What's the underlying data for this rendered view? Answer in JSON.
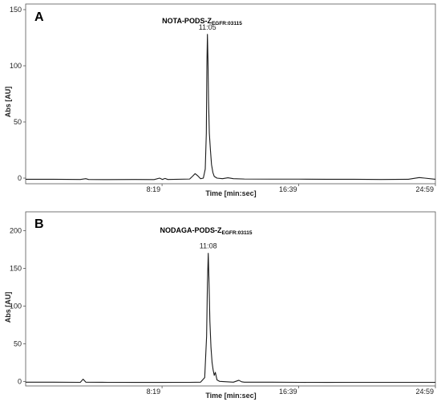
{
  "chart_data": [
    {
      "type": "line",
      "panel": "A",
      "title_main": "NOTA-PODS-Z",
      "title_sub": "EGFR:03115",
      "xlabel": "Time [min:sec]",
      "ylabel": "Abs [AU]",
      "x_unit": "seconds",
      "xlim": [
        0,
        1499
      ],
      "ylim": [
        -5,
        155
      ],
      "x_ticks": [
        {
          "value": 499,
          "label": "8:19"
        },
        {
          "value": 999,
          "label": "16:39"
        },
        {
          "value": 1499,
          "label": "24:59"
        }
      ],
      "y_ticks": [
        0,
        50,
        100,
        150
      ],
      "peak": {
        "x": 665,
        "y": 128,
        "label": "11:05"
      },
      "series": [
        {
          "x": [
            0,
            100,
            200,
            220,
            230,
            300,
            400,
            470,
            490,
            500,
            510,
            520,
            600,
            610,
            620,
            630,
            640,
            650,
            657,
            661,
            663,
            665,
            667,
            669,
            672,
            676,
            680,
            685,
            690,
            700,
            720,
            740,
            760,
            800,
            900,
            1000,
            1100,
            1200,
            1300,
            1400,
            1440,
            1460,
            1499
          ],
          "y": [
            -1,
            -1,
            -1.2,
            -0.5,
            -1.2,
            -1.3,
            -1.2,
            -1.3,
            0,
            -1.2,
            -0.3,
            -1.2,
            -0.8,
            1.5,
            4,
            2,
            -0.5,
            0,
            8,
            40,
            100,
            128,
            105,
            70,
            40,
            25,
            12,
            5,
            1.5,
            0,
            -0.5,
            0.3,
            -0.5,
            -0.8,
            -0.9,
            -0.9,
            -1,
            -1,
            -1.2,
            -1,
            0.5,
            0,
            -1
          ]
        }
      ]
    },
    {
      "type": "line",
      "panel": "B",
      "title_main": "NODAGA-PODS-Z",
      "title_sub": "EGFR:03115",
      "xlabel": "Time [min:sec]",
      "ylabel": "Abs [AU]",
      "x_unit": "seconds",
      "xlim": [
        0,
        1499
      ],
      "ylim": [
        -6,
        225
      ],
      "x_ticks": [
        {
          "value": 499,
          "label": "8:19"
        },
        {
          "value": 999,
          "label": "16:39"
        },
        {
          "value": 1499,
          "label": "24:59"
        }
      ],
      "y_ticks": [
        0,
        50,
        100,
        150,
        200
      ],
      "peak": {
        "x": 668,
        "y": 170,
        "label": "11:08"
      },
      "series": [
        {
          "x": [
            0,
            100,
            200,
            210,
            220,
            300,
            400,
            500,
            600,
            640,
            655,
            662,
            665,
            668,
            671,
            674,
            678,
            682,
            686,
            690,
            694,
            700,
            710,
            760,
            780,
            790,
            800,
            900,
            1000,
            1100,
            1200,
            1300,
            1400,
            1499
          ],
          "y": [
            -1,
            -1,
            -1.2,
            3,
            -1,
            -1.2,
            -1.3,
            -1.3,
            -1.2,
            -1,
            5,
            60,
            130,
            170,
            130,
            80,
            45,
            25,
            15,
            8,
            12,
            2,
            0,
            -1,
            1.5,
            -0.5,
            -1,
            -1,
            -1.2,
            -1.3,
            -1.2,
            -1.2,
            -1.2,
            -1.2
          ]
        }
      ]
    }
  ]
}
